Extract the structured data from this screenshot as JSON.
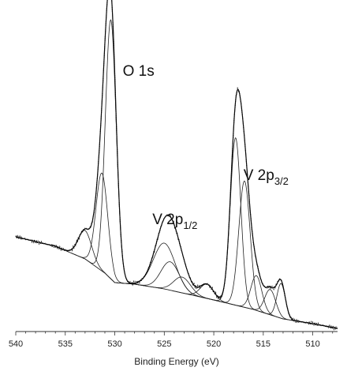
{
  "chart_data": {
    "type": "line",
    "title": "",
    "xlabel": "Binding Energy (eV)",
    "ylabel": "",
    "xlim": [
      540,
      507.5
    ],
    "ylim": [
      0,
      100
    ],
    "x_reversed": true,
    "grid": false,
    "xticks": [
      540,
      535,
      530,
      525,
      520,
      515,
      510
    ],
    "xtick_labels": [
      "540",
      "535",
      "530",
      "525",
      "520",
      "515",
      "510"
    ],
    "annotations": [
      {
        "main": "O 1s",
        "sub": "",
        "x": 529.2,
        "y": 81
      },
      {
        "main": "V 2p",
        "sub": "1/2",
        "x": 526.2,
        "y": 34
      },
      {
        "main": "V 2p",
        "sub": "3/2",
        "x": 517.0,
        "y": 48
      }
    ],
    "background": {
      "x": [
        540,
        536,
        533,
        531,
        530,
        528,
        525,
        520,
        516,
        513,
        510,
        507.5
      ],
      "y": [
        30,
        27,
        23,
        18.5,
        15.5,
        15,
        13.5,
        10,
        7,
        4,
        2.5,
        1
      ]
    },
    "components": [
      {
        "center": 533.0,
        "amp": 9,
        "fwhm": 1.6
      },
      {
        "center": 531.3,
        "amp": 31,
        "fwhm": 1.4
      },
      {
        "center": 530.4,
        "amp": 82,
        "fwhm": 1.3
      },
      {
        "center": 525.0,
        "amp": 14.5,
        "fwhm": 2.6
      },
      {
        "center": 524.4,
        "amp": 9,
        "fwhm": 2.2
      },
      {
        "center": 523.2,
        "amp": 5,
        "fwhm": 2.0
      },
      {
        "center": 520.7,
        "amp": 4.5,
        "fwhm": 1.6
      },
      {
        "center": 517.8,
        "amp": 53,
        "fwhm": 1.25
      },
      {
        "center": 516.9,
        "amp": 40,
        "fwhm": 1.35
      },
      {
        "center": 515.7,
        "amp": 11,
        "fwhm": 1.3
      },
      {
        "center": 514.3,
        "amp": 8,
        "fwhm": 1.3
      },
      {
        "center": 513.2,
        "amp": 11,
        "fwhm": 1.0
      }
    ]
  }
}
